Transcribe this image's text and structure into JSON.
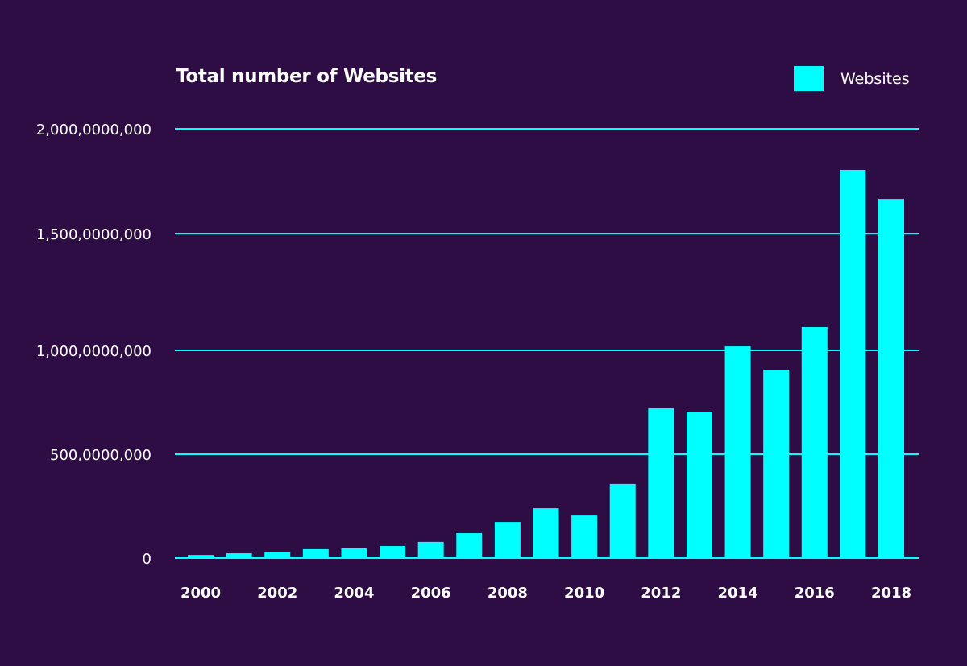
{
  "chart_data": {
    "type": "bar",
    "title": "Total number of Websites",
    "legend": {
      "position": "top-right",
      "entries": [
        "Websites"
      ]
    },
    "series": [
      {
        "name": "Websites",
        "color": "#00ffff",
        "values": [
          15000000,
          23000000,
          31000000,
          43000000,
          47000000,
          58000000,
          78000000,
          120000000,
          174000000,
          240000000,
          205000000,
          357000000,
          721000000,
          705000000,
          1017000000,
          907000000,
          1100000000,
          1804000000,
          1665000000
        ]
      }
    ],
    "categories": [
      "2000",
      "2001",
      "2002",
      "2003",
      "2004",
      "2005",
      "2006",
      "2007",
      "2008",
      "2009",
      "2010",
      "2011",
      "2012",
      "2013",
      "2014",
      "2015",
      "2016",
      "2017",
      "2018"
    ],
    "x_tick_labels": [
      "2000",
      "2002",
      "2004",
      "2006",
      "2008",
      "2010",
      "2012",
      "2014",
      "2016",
      "2018"
    ],
    "y_ticks": [
      0,
      500000000,
      1000000000,
      1500000000,
      2000000000
    ],
    "y_tick_labels": [
      "0",
      "500,0000,000",
      "1,000,0000,000",
      "1,500,0000,000",
      "2,000,0000,000"
    ],
    "ylim": [
      0,
      2000000000
    ],
    "grid": true,
    "background": "#2e0c44",
    "grid_color": "#00ffff"
  }
}
